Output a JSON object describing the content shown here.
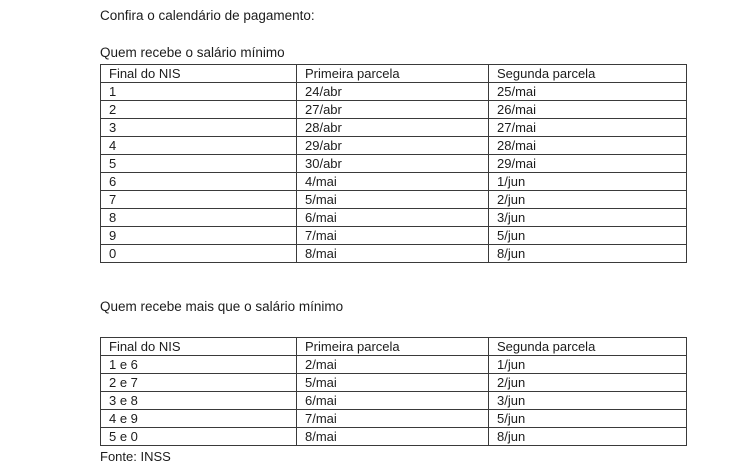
{
  "page": {
    "title": "Confira o calendário de pagamento:",
    "source": "Fonte: INSS"
  },
  "sections": [
    {
      "heading": "Quem recebe o salário mínimo",
      "table": {
        "headers": [
          "Final do NIS",
          "Primeira parcela",
          "Segunda parcela"
        ],
        "rows": [
          [
            "1",
            "24/abr",
            "25/mai"
          ],
          [
            "2",
            "27/abr",
            "26/mai"
          ],
          [
            "3",
            "28/abr",
            "27/mai"
          ],
          [
            "4",
            "29/abr",
            "28/mai"
          ],
          [
            "5",
            "30/abr",
            "29/mai"
          ],
          [
            "6",
            "4/mai",
            "1/jun"
          ],
          [
            "7",
            "5/mai",
            "2/jun"
          ],
          [
            "8",
            "6/mai",
            "3/jun"
          ],
          [
            "9",
            "7/mai",
            "5/jun"
          ],
          [
            "0",
            "8/mai",
            "8/jun"
          ]
        ]
      }
    },
    {
      "heading": "Quem recebe mais que o salário mínimo",
      "table": {
        "headers": [
          "Final do NIS",
          "Primeira parcela",
          "Segunda parcela"
        ],
        "rows": [
          [
            "1 e 6",
            "2/mai",
            "1/jun"
          ],
          [
            "2 e 7",
            "5/mai",
            "2/jun"
          ],
          [
            "3 e 8",
            "6/mai",
            "3/jun"
          ],
          [
            "4 e 9",
            "7/mai",
            "5/jun"
          ],
          [
            "5 e 0",
            "8/mai",
            "8/jun"
          ]
        ]
      }
    }
  ]
}
